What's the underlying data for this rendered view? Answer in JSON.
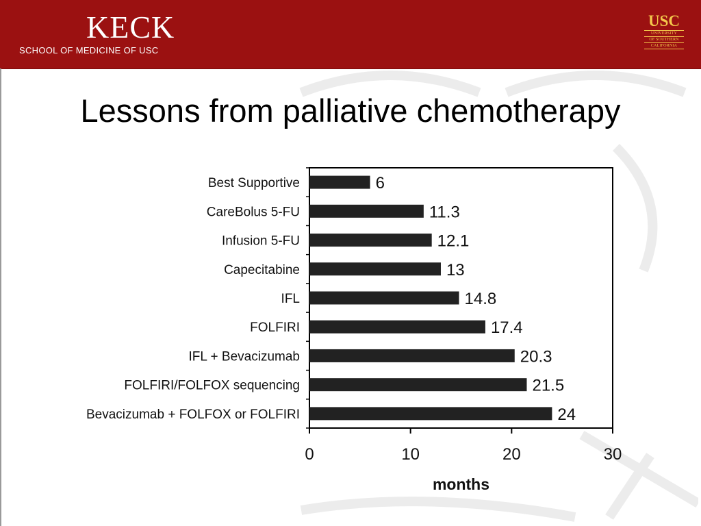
{
  "header": {
    "keck_word": "KECK",
    "keck_subtitle": "SCHOOL OF MEDICINE OF USC",
    "usc_word": "USC",
    "usc_lines": [
      "UNIVERSITY",
      "OF SOUTHERN",
      "CALIFORNIA"
    ],
    "brand_color": "#9b1111",
    "usc_gold": "#f3c74b"
  },
  "slide": {
    "title": "Lessons from palliative chemotherapy"
  },
  "chart_data": {
    "type": "bar",
    "orientation": "horizontal",
    "categories": [
      "Best Supportive",
      "CareBolus 5-FU",
      "Infusion 5-FU",
      "Capecitabine",
      "IFL",
      "FOLFIRI",
      "IFL + Bevacizumab",
      "FOLFIRI/FOLFOX sequencing",
      "Bevacizumab + FOLFOX or FOLFIRI"
    ],
    "values": [
      6,
      11.3,
      12.1,
      13,
      14.8,
      17.4,
      20.3,
      21.5,
      24
    ],
    "value_labels": [
      "6",
      "11.3",
      "12.1",
      "13",
      "14.8",
      "17.4",
      "20.3",
      "21.5",
      "24"
    ],
    "xlabel": "months",
    "ylabel": "",
    "xlim": [
      0,
      30
    ],
    "xticks": [
      "0",
      "10",
      "20",
      "30"
    ],
    "bar_color": "#222222",
    "grid": false,
    "legend": "none"
  }
}
